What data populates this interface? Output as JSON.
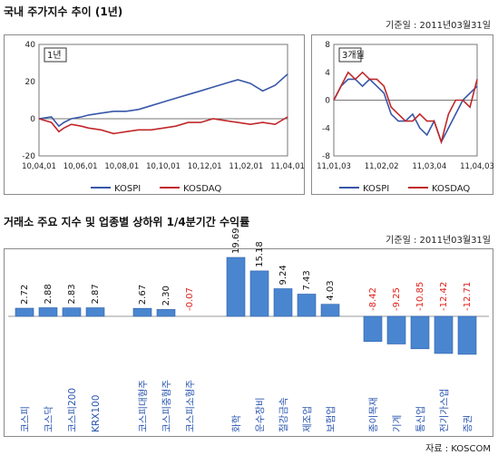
{
  "section1": {
    "title": "국내 주가지수 추이 (1년)",
    "base_date": "기준일 : 2011년03월31일"
  },
  "section2": {
    "title": "거래소 주요 지수 및 업종별 상하위 1/4분기간 수익률",
    "base_date": "기준일 : 2011년03월31일"
  },
  "source": "자료 : KOSCOM",
  "colors": {
    "kospi": "#3857a8",
    "kosdaq": "#c0282a",
    "bar": "#4a86d0",
    "neg_label": "#e0201a"
  },
  "chart_data": [
    {
      "type": "line",
      "box_label": "1년",
      "x_ticks": [
        "10,04,01",
        "10,06,01",
        "10,08,01",
        "10,10,01",
        "10,12,01",
        "11,02,01",
        "11,04,01"
      ],
      "ylim": [
        -20,
        40
      ],
      "y_ticks": [
        40,
        20,
        0,
        -20
      ],
      "legend": [
        "KOSPI",
        "KOSDAQ"
      ],
      "series": [
        {
          "name": "KOSPI",
          "x": [
            0,
            0.05,
            0.08,
            0.1,
            0.13,
            0.17,
            0.2,
            0.25,
            0.3,
            0.35,
            0.4,
            0.45,
            0.5,
            0.55,
            0.6,
            0.65,
            0.7,
            0.75,
            0.8,
            0.85,
            0.9,
            0.95,
            1.0
          ],
          "values": [
            0,
            1,
            -4,
            -2,
            0,
            1,
            2,
            3,
            4,
            4,
            5,
            7,
            9,
            11,
            13,
            15,
            17,
            19,
            21,
            19,
            15,
            18,
            24
          ]
        },
        {
          "name": "KOSDAQ",
          "x": [
            0,
            0.05,
            0.08,
            0.1,
            0.13,
            0.17,
            0.2,
            0.25,
            0.3,
            0.35,
            0.4,
            0.45,
            0.5,
            0.55,
            0.6,
            0.65,
            0.7,
            0.75,
            0.8,
            0.85,
            0.9,
            0.95,
            1.0
          ],
          "values": [
            0,
            -2,
            -7,
            -5,
            -3,
            -4,
            -5,
            -6,
            -8,
            -7,
            -6,
            -6,
            -5,
            -4,
            -2,
            -2,
            0,
            -1,
            -2,
            -3,
            -2,
            -3,
            1
          ]
        }
      ]
    },
    {
      "type": "line",
      "box_label": "3개월",
      "x_ticks": [
        "11,01,03",
        "11,02,02",
        "11,03,04",
        "11,04,03"
      ],
      "ylim": [
        -8,
        8
      ],
      "y_ticks": [
        8,
        4,
        0,
        -4,
        -8
      ],
      "legend": [
        "KOSPI",
        "KOSDAQ"
      ],
      "series": [
        {
          "name": "KOSPI",
          "x": [
            0,
            0.05,
            0.1,
            0.15,
            0.2,
            0.25,
            0.3,
            0.35,
            0.4,
            0.45,
            0.5,
            0.55,
            0.6,
            0.65,
            0.7,
            0.75,
            0.8,
            0.85,
            0.9,
            0.95,
            1.0
          ],
          "values": [
            0,
            2,
            3,
            3,
            2,
            3,
            2,
            1,
            -2,
            -3,
            -3,
            -2,
            -4,
            -5,
            -3,
            -6,
            -4,
            -2,
            0,
            1,
            2
          ]
        },
        {
          "name": "KOSDAQ",
          "x": [
            0,
            0.05,
            0.1,
            0.15,
            0.2,
            0.25,
            0.3,
            0.35,
            0.4,
            0.45,
            0.5,
            0.55,
            0.6,
            0.65,
            0.7,
            0.75,
            0.8,
            0.85,
            0.9,
            0.95,
            1.0
          ],
          "values": [
            0,
            2,
            4,
            3,
            4,
            3,
            3,
            2,
            -1,
            -2,
            -3,
            -3,
            -2,
            -3,
            -3,
            -6,
            -2,
            0,
            0,
            -1,
            3
          ]
        }
      ]
    },
    {
      "type": "bar",
      "categories": [
        "코스피",
        "코스닥",
        "코스피200",
        "KRX100",
        "코스피대형주",
        "코스피중형주",
        "코스피소형주",
        "화학",
        "운수장비",
        "철강금속",
        "제조업",
        "보험업",
        "종이목재",
        "기계",
        "통신업",
        "전기가스업",
        "증권"
      ],
      "values": [
        2.72,
        2.88,
        2.83,
        2.87,
        2.67,
        2.3,
        -0.07,
        19.69,
        15.18,
        9.24,
        7.43,
        4.03,
        -8.42,
        -9.25,
        -10.85,
        -12.42,
        -12.71
      ],
      "labels": [
        "2.72",
        "2.88",
        "2.83",
        "2.87",
        "2.67",
        "2.30",
        "-0.07",
        "19.69",
        "15.18",
        "9.24",
        "7.43",
        "4.03",
        "-8.42",
        "-9.25",
        "-10.85",
        "-12.42",
        "-12.71"
      ],
      "groups": [
        [
          0,
          1,
          2,
          3
        ],
        [
          4,
          5,
          6
        ],
        [
          7,
          8,
          9,
          10,
          11
        ],
        [
          12,
          13,
          14,
          15,
          16
        ]
      ]
    }
  ]
}
